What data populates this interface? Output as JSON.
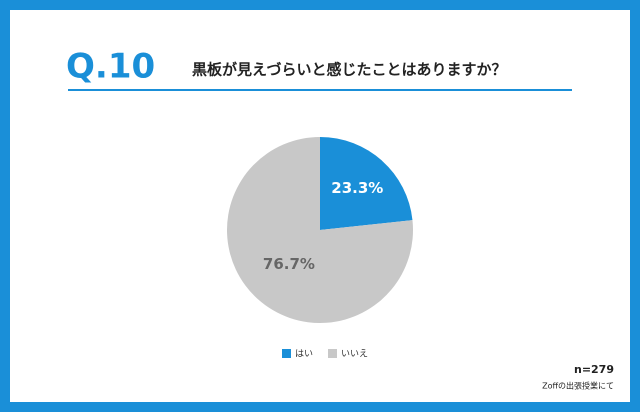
{
  "chart_data": {
    "type": "pie",
    "question_number": "Q.10",
    "title": "黒板が見えづらいと感じたことはありますか？",
    "categories": [
      "はい",
      "いいえ"
    ],
    "values": [
      23.3,
      76.7
    ],
    "value_labels": [
      "23.3%",
      "76.7%"
    ],
    "colors": [
      "#1a8fd8",
      "#c8c8c8"
    ],
    "sample_size": "n=279",
    "source": "Zoffの出張授業にて"
  }
}
